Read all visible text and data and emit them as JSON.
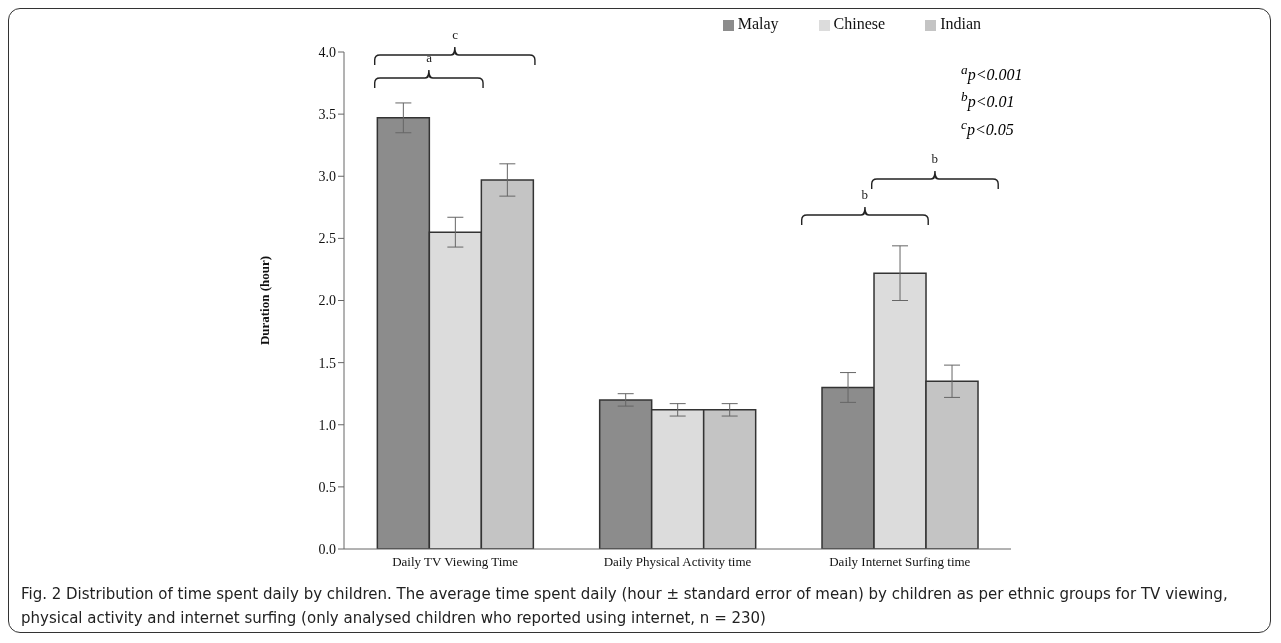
{
  "chart_data": {
    "type": "bar",
    "ylabel": "Duration (hour)",
    "categories": [
      "Daily TV Viewing Time",
      "Daily Physical Activity time",
      "Daily Internet Surfing time"
    ],
    "series": [
      {
        "name": "Malay",
        "color": "#8c8c8c",
        "values": [
          3.47,
          1.2,
          1.3
        ],
        "errors": [
          0.12,
          0.05,
          0.12
        ]
      },
      {
        "name": "Chinese",
        "color": "#dcdcdc",
        "values": [
          2.55,
          1.12,
          2.22
        ],
        "errors": [
          0.12,
          0.05,
          0.22
        ]
      },
      {
        "name": "Indian",
        "color": "#c4c4c4",
        "values": [
          2.97,
          1.12,
          1.35
        ],
        "errors": [
          0.13,
          0.05,
          0.13
        ]
      }
    ],
    "ylim": [
      0,
      4
    ],
    "yticks": [
      {
        "value": 0,
        "label": "0.0"
      },
      {
        "value": 0.5,
        "label": "0.5"
      },
      {
        "value": 1,
        "label": "1.0"
      },
      {
        "value": 1.5,
        "label": "1.5"
      },
      {
        "value": 2,
        "label": "2.0"
      },
      {
        "value": 2.5,
        "label": "2.5"
      },
      {
        "value": 3,
        "label": "3.0"
      },
      {
        "value": 3.5,
        "label": "3.5"
      },
      {
        "value": 4,
        "label": "4.0"
      }
    ],
    "grid": false,
    "legend": "top right",
    "annotations": [
      "a",
      "c",
      "b",
      "b",
      "$^{a}$p<0.001",
      "$^{b}$p<0.01",
      "$^{c}$p<0.05",
      "Fig. 2 Distribution of time spent daily by children. The average time spent daily (hour ± standard error of mean) by children as per ethnic groups for TV viewing, physical activity and internet surfing (only analysed children who reported using internet, n = 230)"
    ]
  }
}
